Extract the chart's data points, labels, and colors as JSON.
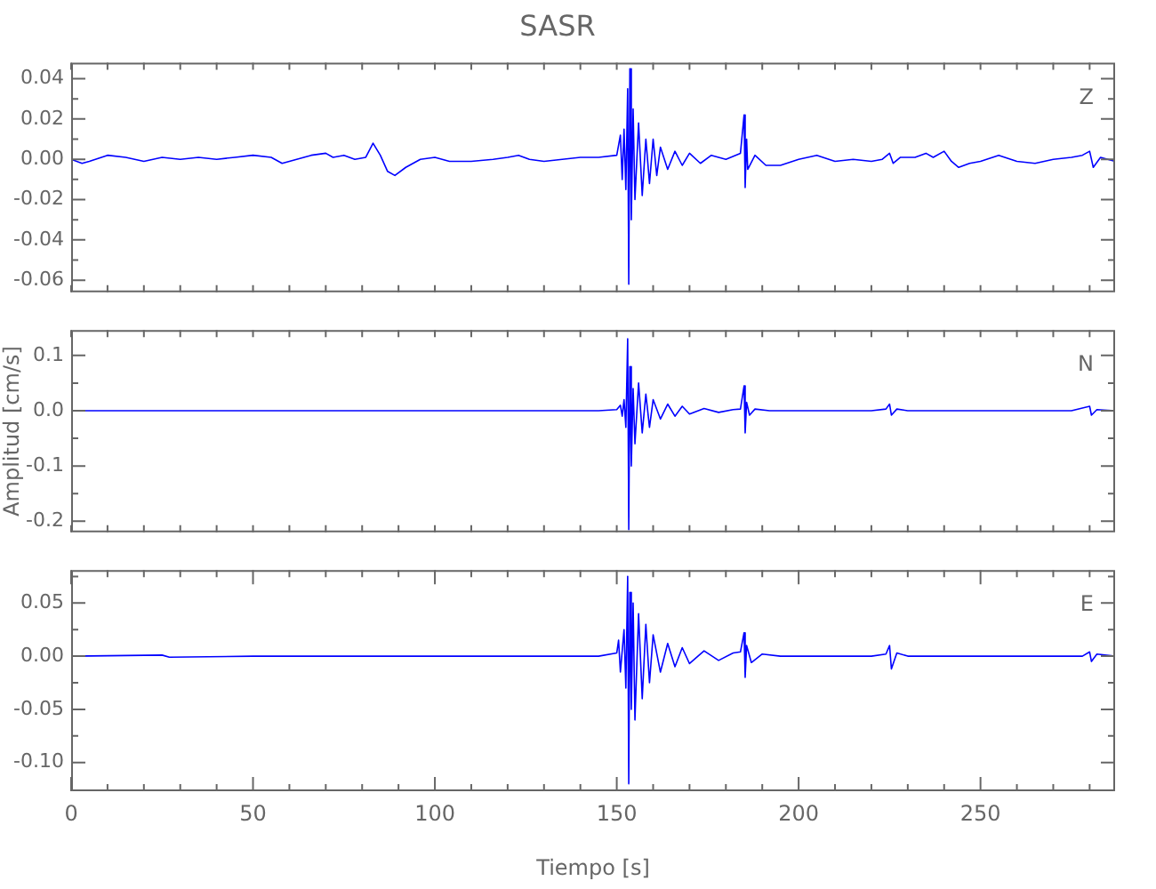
{
  "chart_data": [
    {
      "type": "line",
      "title": "SASR",
      "tick_labels": "y",
      "grid": false,
      "legend": false,
      "marker": "none",
      "line_style": "solid",
      "xlim": [
        0,
        287
      ],
      "xticks": [
        {
          "value": 0,
          "label": null
        },
        {
          "value": 10,
          "label": null
        },
        {
          "value": 20,
          "label": null
        },
        {
          "value": 30,
          "label": null
        },
        {
          "value": 40,
          "label": null
        },
        {
          "value": 50,
          "label": null
        },
        {
          "value": 60,
          "label": null
        },
        {
          "value": 70,
          "label": null
        },
        {
          "value": 80,
          "label": null
        },
        {
          "value": 90,
          "label": null
        },
        {
          "value": 100,
          "label": null
        },
        {
          "value": 110,
          "label": null
        },
        {
          "value": 120,
          "label": null
        },
        {
          "value": 130,
          "label": null
        },
        {
          "value": 140,
          "label": null
        },
        {
          "value": 150,
          "label": null
        },
        {
          "value": 160,
          "label": null
        },
        {
          "value": 170,
          "label": null
        },
        {
          "value": 180,
          "label": null
        },
        {
          "value": 190,
          "label": null
        },
        {
          "value": 200,
          "label": null
        },
        {
          "value": 210,
          "label": null
        },
        {
          "value": 220,
          "label": null
        },
        {
          "value": 230,
          "label": null
        },
        {
          "value": 240,
          "label": null
        },
        {
          "value": 250,
          "label": null
        },
        {
          "value": 260,
          "label": null
        },
        {
          "value": 270,
          "label": null
        },
        {
          "value": 280,
          "label": null
        }
      ],
      "ylim": [
        -0.066,
        0.048
      ],
      "yticks": [
        {
          "value": -0.06,
          "label": "-0.06"
        },
        {
          "value": -0.05,
          "label": null
        },
        {
          "value": -0.04,
          "label": "-0.04"
        },
        {
          "value": -0.03,
          "label": null
        },
        {
          "value": -0.02,
          "label": "-0.02"
        },
        {
          "value": -0.01,
          "label": null
        },
        {
          "value": 0,
          "label": "0.00"
        },
        {
          "value": 0.01,
          "label": null
        },
        {
          "value": 0.02,
          "label": "0.02"
        },
        {
          "value": 0.03,
          "label": null
        },
        {
          "value": 0.04,
          "label": "0.04"
        }
      ],
      "series": [
        {
          "name": "Z",
          "color": "#0000ff",
          "x": [
            0,
            3,
            5,
            10,
            15,
            20,
            25,
            30,
            35,
            40,
            45,
            50,
            55,
            58,
            62,
            66,
            70,
            72,
            75,
            78,
            81,
            83,
            85,
            87,
            89,
            92,
            96,
            100,
            104,
            110,
            116,
            120,
            123,
            126,
            130,
            135,
            140,
            145,
            150,
            151,
            151.5,
            152,
            152.5,
            153,
            153.3,
            153.6,
            154,
            154.5,
            155,
            156,
            157,
            158,
            159,
            160,
            161,
            162,
            164,
            166,
            168,
            170,
            173,
            176,
            180,
            184,
            185,
            185.3,
            185.7,
            186,
            188,
            191,
            195,
            200,
            205,
            210,
            215,
            220,
            223,
            225,
            226,
            228,
            232,
            235,
            237,
            240,
            242,
            244,
            247,
            250,
            255,
            260,
            265,
            270,
            275,
            278,
            280,
            281,
            283,
            287
          ],
          "values": [
            0,
            -0.002,
            -0.001,
            0.002,
            0.001,
            -0.001,
            0.001,
            0,
            0.001,
            0,
            0.001,
            0.002,
            0.001,
            -0.002,
            0,
            0.002,
            0.003,
            0.001,
            0.002,
            0,
            0.001,
            0.008,
            0.002,
            -0.006,
            -0.008,
            -0.004,
            0,
            0.001,
            -0.001,
            -0.001,
            0,
            0.001,
            0.002,
            0,
            -0.001,
            0,
            0.001,
            0.001,
            0.002,
            0.012,
            -0.01,
            0.015,
            -0.015,
            0.035,
            -0.062,
            0.045,
            -0.03,
            0.025,
            -0.02,
            0.018,
            -0.018,
            0.01,
            -0.012,
            0.01,
            -0.008,
            0.006,
            -0.005,
            0.004,
            -0.003,
            0.003,
            -0.002,
            0.002,
            0,
            0.003,
            0.022,
            -0.014,
            0.01,
            -0.005,
            0.002,
            -0.003,
            -0.003,
            0,
            0.002,
            -0.001,
            0,
            -0.001,
            0,
            0.003,
            -0.002,
            0.001,
            0.001,
            0.003,
            0.001,
            0.004,
            -0.001,
            -0.004,
            -0.002,
            -0.001,
            0.002,
            -0.001,
            -0.002,
            0,
            0.001,
            0.002,
            0.004,
            -0.004,
            0.001,
            -0.001
          ]
        }
      ]
    },
    {
      "type": "line",
      "ylabel": "Amplitud [cm/s]",
      "tick_labels": "y",
      "grid": false,
      "legend": false,
      "marker": "none",
      "line_style": "solid",
      "xlim": [
        0,
        287
      ],
      "xticks": [
        {
          "value": 0,
          "label": null
        },
        {
          "value": 10,
          "label": null
        },
        {
          "value": 20,
          "label": null
        },
        {
          "value": 30,
          "label": null
        },
        {
          "value": 40,
          "label": null
        },
        {
          "value": 50,
          "label": null
        },
        {
          "value": 60,
          "label": null
        },
        {
          "value": 70,
          "label": null
        },
        {
          "value": 80,
          "label": null
        },
        {
          "value": 90,
          "label": null
        },
        {
          "value": 100,
          "label": null
        },
        {
          "value": 110,
          "label": null
        },
        {
          "value": 120,
          "label": null
        },
        {
          "value": 130,
          "label": null
        },
        {
          "value": 140,
          "label": null
        },
        {
          "value": 150,
          "label": null
        },
        {
          "value": 160,
          "label": null
        },
        {
          "value": 170,
          "label": null
        },
        {
          "value": 180,
          "label": null
        },
        {
          "value": 190,
          "label": null
        },
        {
          "value": 200,
          "label": null
        },
        {
          "value": 210,
          "label": null
        },
        {
          "value": 220,
          "label": null
        },
        {
          "value": 230,
          "label": null
        },
        {
          "value": 240,
          "label": null
        },
        {
          "value": 250,
          "label": null
        },
        {
          "value": 260,
          "label": null
        },
        {
          "value": 270,
          "label": null
        },
        {
          "value": 280,
          "label": null
        }
      ],
      "ylim": [
        -0.22,
        0.146
      ],
      "yticks": [
        {
          "value": -0.2,
          "label": "-0.2"
        },
        {
          "value": -0.15,
          "label": null
        },
        {
          "value": -0.1,
          "label": "-0.1"
        },
        {
          "value": -0.05,
          "label": null
        },
        {
          "value": 0,
          "label": "0.0"
        },
        {
          "value": 0.05,
          "label": null
        },
        {
          "value": 0.1,
          "label": "0.1"
        }
      ],
      "series": [
        {
          "name": "N",
          "color": "#0000ff",
          "x": [
            0,
            50,
            100,
            145,
            150,
            151,
            151.5,
            152,
            152.5,
            153,
            153.3,
            153.6,
            154,
            154.5,
            155,
            156,
            157,
            158,
            159,
            160,
            162,
            164,
            166,
            168,
            170,
            174,
            178,
            182,
            184,
            185,
            185.3,
            185.7,
            186.5,
            188,
            192,
            200,
            220,
            224,
            225,
            225.5,
            227,
            230,
            250,
            275,
            280,
            280.5,
            282,
            287
          ],
          "values": [
            0,
            0,
            0,
            0,
            0.002,
            0.01,
            -0.01,
            0.02,
            -0.03,
            0.13,
            -0.215,
            0.08,
            -0.1,
            0.04,
            -0.06,
            0.05,
            -0.04,
            0.03,
            -0.03,
            0.02,
            -0.015,
            0.012,
            -0.01,
            0.008,
            -0.006,
            0.004,
            -0.003,
            0.002,
            0.003,
            0.045,
            -0.04,
            0.015,
            -0.008,
            0.003,
            0,
            0,
            0,
            0.003,
            0.012,
            -0.008,
            0.003,
            0,
            0,
            0,
            0.008,
            -0.008,
            0.002,
            0
          ]
        }
      ]
    },
    {
      "type": "line",
      "xlabel": "Tiempo [s]",
      "grid": false,
      "legend": false,
      "marker": "none",
      "line_style": "solid",
      "xlim": [
        0,
        287
      ],
      "xticks": [
        {
          "value": 0,
          "label": "0"
        },
        {
          "value": 10,
          "label": null
        },
        {
          "value": 20,
          "label": null
        },
        {
          "value": 30,
          "label": null
        },
        {
          "value": 40,
          "label": null
        },
        {
          "value": 50,
          "label": "50"
        },
        {
          "value": 60,
          "label": null
        },
        {
          "value": 70,
          "label": null
        },
        {
          "value": 80,
          "label": null
        },
        {
          "value": 90,
          "label": null
        },
        {
          "value": 100,
          "label": "100"
        },
        {
          "value": 110,
          "label": null
        },
        {
          "value": 120,
          "label": null
        },
        {
          "value": 130,
          "label": null
        },
        {
          "value": 140,
          "label": null
        },
        {
          "value": 150,
          "label": "150"
        },
        {
          "value": 160,
          "label": null
        },
        {
          "value": 170,
          "label": null
        },
        {
          "value": 180,
          "label": null
        },
        {
          "value": 190,
          "label": null
        },
        {
          "value": 200,
          "label": "200"
        },
        {
          "value": 210,
          "label": null
        },
        {
          "value": 220,
          "label": null
        },
        {
          "value": 230,
          "label": null
        },
        {
          "value": 240,
          "label": null
        },
        {
          "value": 250,
          "label": "250"
        },
        {
          "value": 260,
          "label": null
        },
        {
          "value": 270,
          "label": null
        },
        {
          "value": 280,
          "label": null
        }
      ],
      "ylim": [
        -0.127,
        0.081
      ],
      "yticks": [
        {
          "value": -0.1,
          "label": "-0.10"
        },
        {
          "value": -0.075,
          "label": null
        },
        {
          "value": -0.05,
          "label": "-0.05"
        },
        {
          "value": -0.025,
          "label": null
        },
        {
          "value": 0,
          "label": "0.00"
        },
        {
          "value": 0.025,
          "label": null
        },
        {
          "value": 0.05,
          "label": "0.05"
        },
        {
          "value": 0.075,
          "label": null
        }
      ],
      "series": [
        {
          "name": "E",
          "color": "#0000ff",
          "x": [
            0,
            25,
            27,
            50,
            100,
            145,
            150,
            150.5,
            151,
            152,
            152.5,
            153,
            153.3,
            153.6,
            154,
            154.5,
            155,
            156,
            157,
            158,
            159,
            160,
            162,
            164,
            166,
            168,
            170,
            174,
            178,
            182,
            184,
            185,
            185.3,
            185.7,
            187,
            190,
            195,
            220,
            224,
            225,
            225.5,
            227,
            230,
            250,
            278,
            280,
            280.5,
            282,
            287
          ],
          "values": [
            0,
            0.001,
            -0.001,
            0,
            0,
            0,
            0.003,
            0.015,
            -0.015,
            0.025,
            -0.03,
            0.075,
            -0.12,
            0.06,
            -0.05,
            0.05,
            -0.06,
            0.04,
            -0.04,
            0.03,
            -0.025,
            0.02,
            -0.015,
            0.012,
            -0.01,
            0.008,
            -0.007,
            0.005,
            -0.004,
            0.003,
            0.004,
            0.022,
            -0.02,
            0.01,
            -0.006,
            0.002,
            0,
            0,
            0.002,
            0.01,
            -0.012,
            0.003,
            0,
            0,
            0,
            0.004,
            -0.005,
            0.002,
            0
          ]
        }
      ]
    }
  ]
}
